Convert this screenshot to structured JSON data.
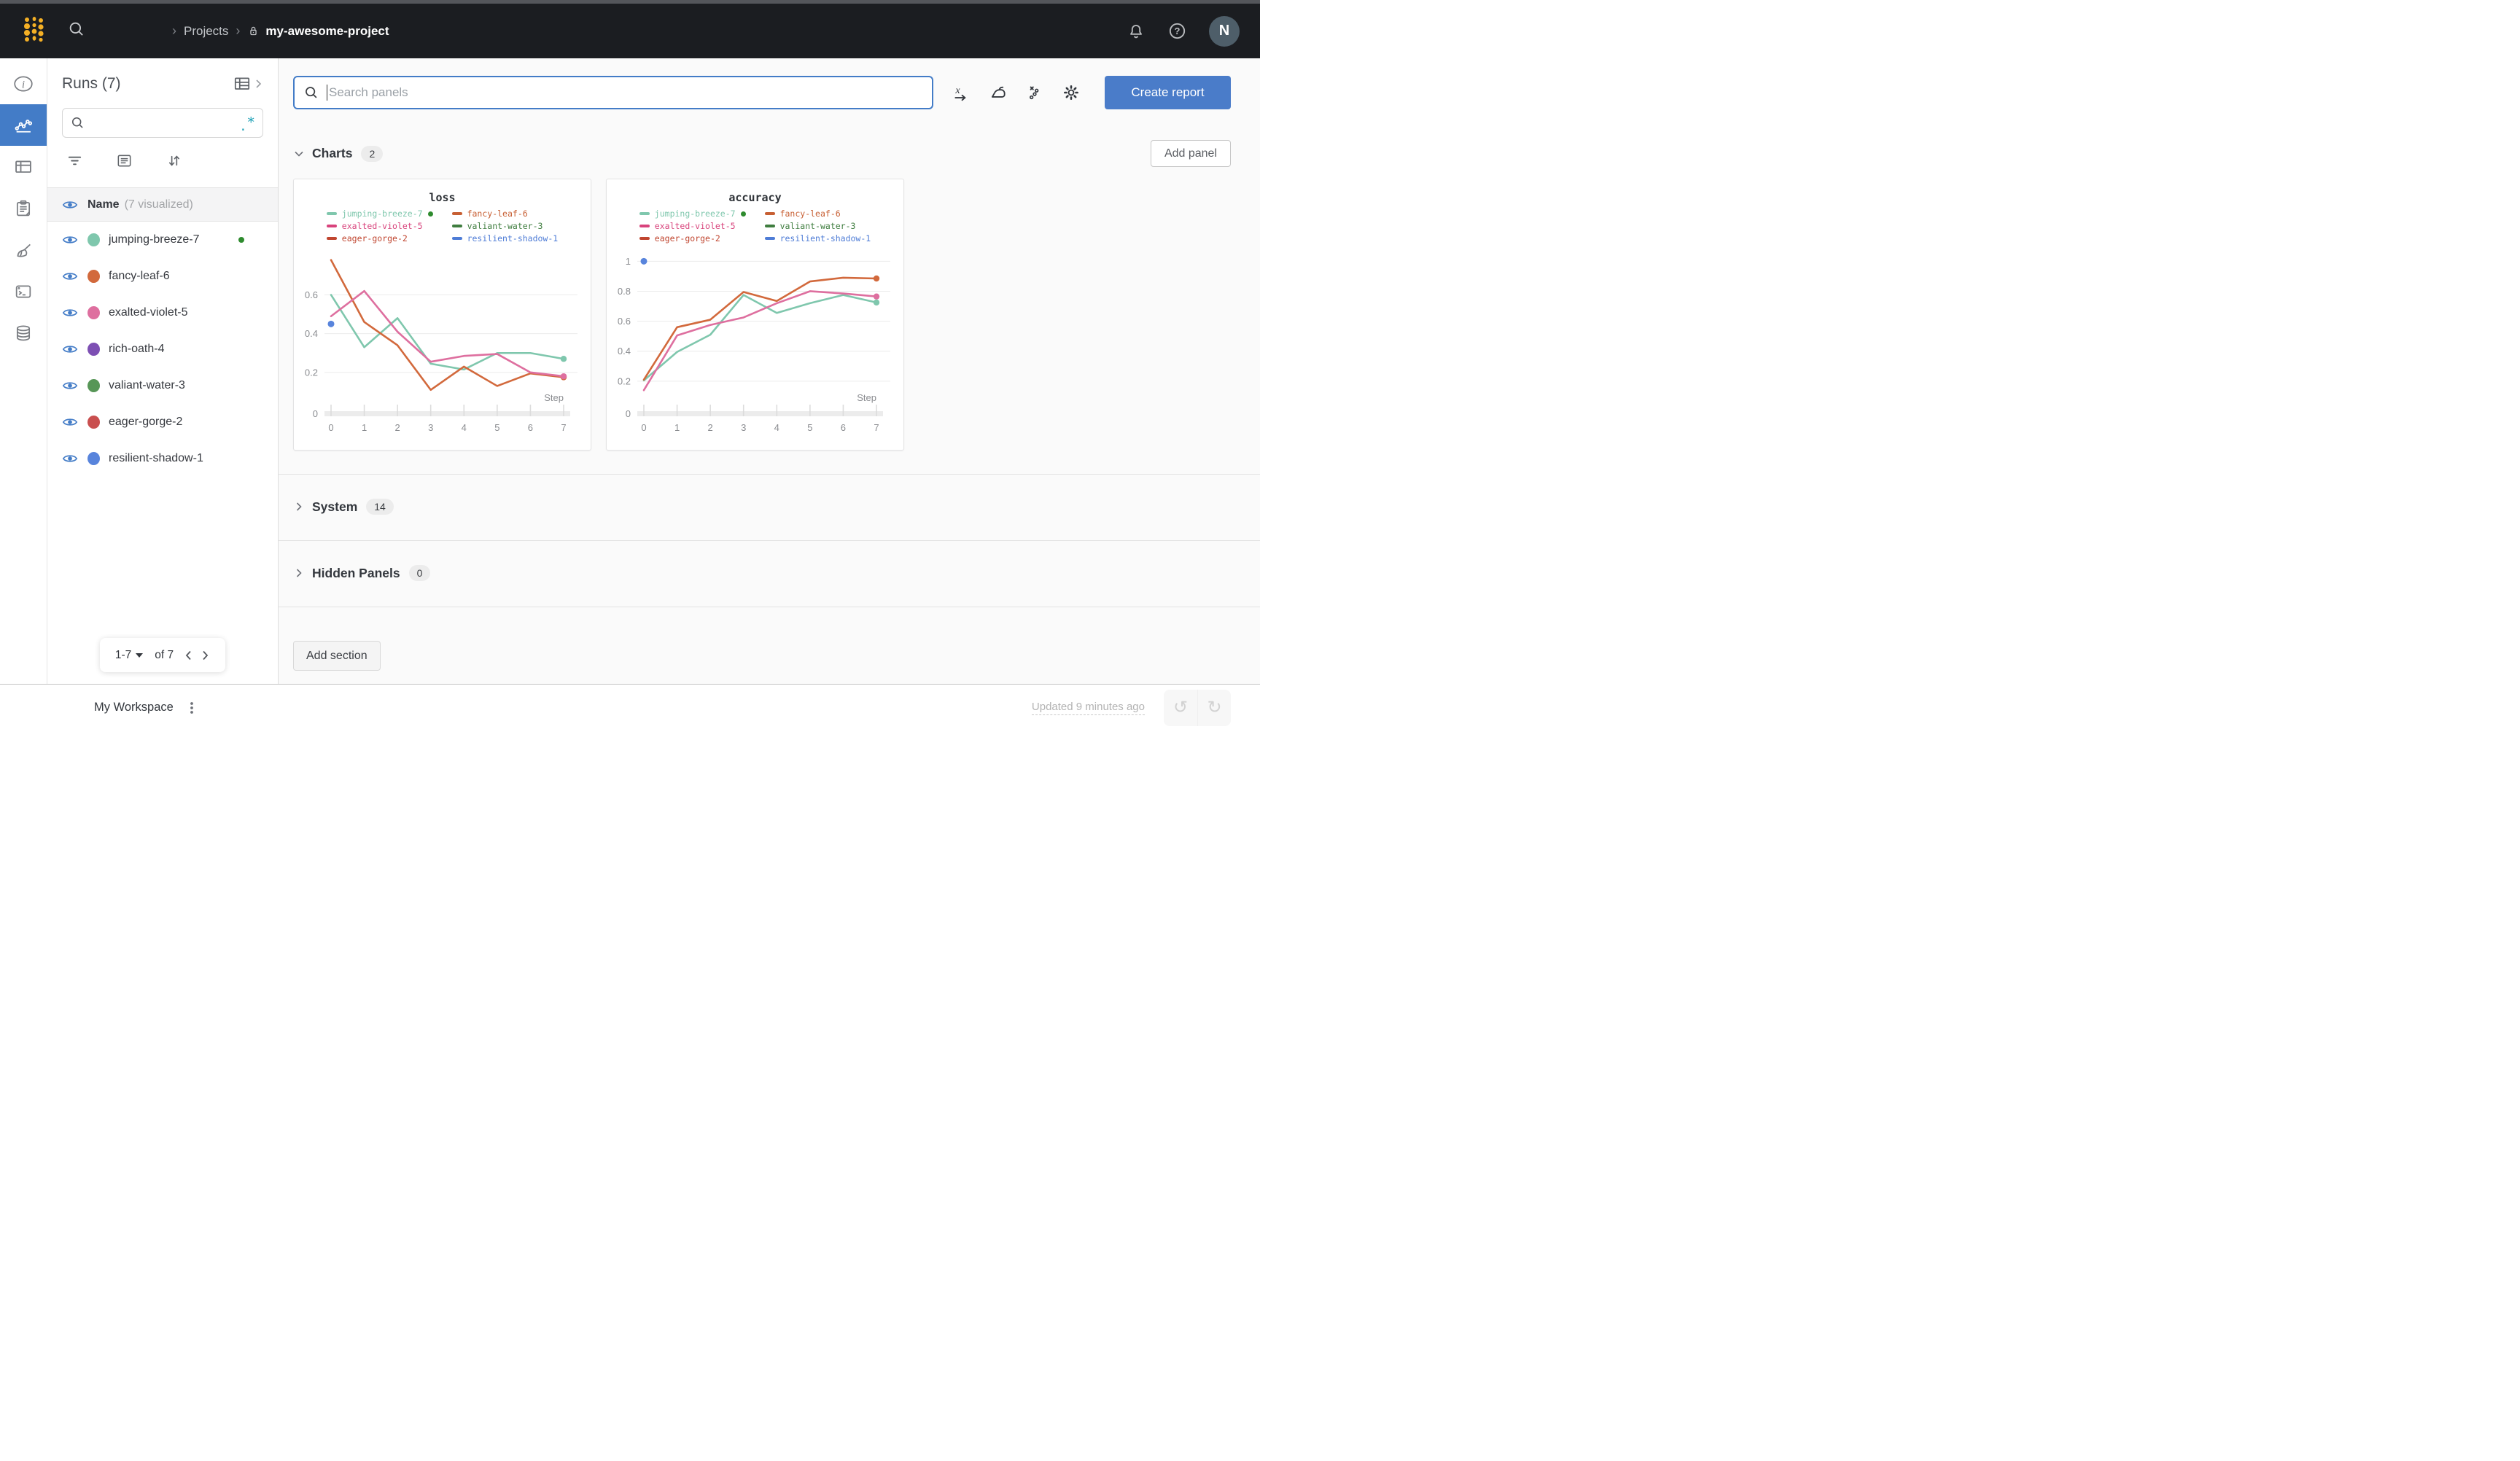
{
  "header": {
    "breadcrumb": {
      "section": "Projects",
      "project": "my-awesome-project"
    },
    "avatar_initial": "N",
    "icons": [
      "wandb-logo",
      "search-icon",
      "lock-icon",
      "bell-icon",
      "help-icon"
    ]
  },
  "nav_rail": {
    "items": [
      {
        "name": "overview",
        "icon": "info-icon",
        "active": false
      },
      {
        "name": "workspace",
        "icon": "line-chart-icon",
        "active": true
      },
      {
        "name": "table",
        "icon": "table-icon",
        "active": false
      },
      {
        "name": "jobs",
        "icon": "clipboard-icon",
        "active": false
      },
      {
        "name": "sweeps",
        "icon": "broom-icon",
        "active": false
      },
      {
        "name": "logs",
        "icon": "terminal-icon",
        "active": false
      },
      {
        "name": "artifacts",
        "icon": "database-icon",
        "active": false
      }
    ]
  },
  "runs_sidebar": {
    "title": "Runs (7)",
    "search_placeholder": "",
    "tools": [
      "filter-icon",
      "notes-icon",
      "sort-icon",
      "regex-icon",
      "table-expand-icon"
    ],
    "list_header": {
      "name": "Name",
      "visualized": "(7 visualized)"
    },
    "runs": [
      {
        "name": "jumping-breeze-7",
        "color": "#7fc7ad",
        "running": true
      },
      {
        "name": "fancy-leaf-6",
        "color": "#d2693c",
        "running": false
      },
      {
        "name": "exalted-violet-5",
        "color": "#de6f9f",
        "running": false
      },
      {
        "name": "rich-oath-4",
        "color": "#7d4fb3",
        "running": false
      },
      {
        "name": "valiant-water-3",
        "color": "#579657",
        "running": false
      },
      {
        "name": "eager-gorge-2",
        "color": "#c94f4f",
        "running": false
      },
      {
        "name": "resilient-shadow-1",
        "color": "#5884dc",
        "running": false
      }
    ],
    "pagination": {
      "range": "1-7",
      "of": "of 7"
    }
  },
  "main": {
    "search_placeholder": "Search panels",
    "toolbar_icons": [
      "x-axis-icon",
      "smoothing-iron-icon",
      "outliers-icon",
      "settings-gear-icon"
    ],
    "create_report_label": "Create report",
    "add_panel_label": "Add panel",
    "sections": [
      {
        "label": "Charts",
        "count": "2",
        "expanded": true
      },
      {
        "label": "System",
        "count": "14",
        "expanded": false
      },
      {
        "label": "Hidden Panels",
        "count": "0",
        "expanded": false
      }
    ],
    "add_section_label": "Add section"
  },
  "footer": {
    "workspace_label": "My Workspace",
    "updated_label": "Updated 9 minutes ago"
  },
  "colors": {
    "accent_blue": "#437cc7",
    "button_blue": "#4a7cc9",
    "header_bg": "#1b1d21",
    "logo_gold": "#f5b025",
    "running_green": "#2e8b2e"
  },
  "chart_data": [
    {
      "type": "line",
      "title": "loss",
      "xlabel": "Step",
      "x": [
        0,
        1,
        2,
        3,
        4,
        5,
        6,
        7
      ],
      "ylim": [
        0,
        0.82
      ],
      "yticks": [
        0,
        0.2,
        0.4,
        0.6
      ],
      "series": [
        {
          "name": "jumping-breeze-7",
          "color": "#7fc7ad",
          "values": [
            0.6,
            0.33,
            0.48,
            0.245,
            0.215,
            0.3,
            0.3,
            0.27
          ]
        },
        {
          "name": "fancy-leaf-6",
          "color": "#d2693c",
          "values": [
            0.78,
            0.46,
            0.34,
            0.11,
            0.23,
            0.13,
            0.195,
            0.175
          ]
        },
        {
          "name": "exalted-violet-5",
          "color": "#de6f9f",
          "values": [
            0.49,
            0.62,
            0.41,
            0.255,
            0.285,
            0.295,
            0.2,
            0.18
          ]
        }
      ],
      "points": [
        {
          "name": "resilient-shadow-1",
          "color": "#5884dc",
          "x": 0,
          "y": 0.45
        }
      ],
      "legend": [
        {
          "name": "jumping-breeze-7",
          "color": "#7fc7ad",
          "running": true
        },
        {
          "name": "fancy-leaf-6",
          "color": "#c75f33",
          "running": false
        },
        {
          "name": "exalted-violet-5",
          "color": "#d8437c",
          "running": false
        },
        {
          "name": "valiant-water-3",
          "color": "#3f7d3f",
          "running": false
        },
        {
          "name": "eager-gorge-2",
          "color": "#c0452f",
          "running": false
        },
        {
          "name": "resilient-shadow-1",
          "color": "#4e7cd6",
          "running": false
        }
      ]
    },
    {
      "type": "line",
      "title": "accuracy",
      "xlabel": "Step",
      "x": [
        0,
        1,
        2,
        3,
        4,
        5,
        6,
        7
      ],
      "ylim": [
        0,
        1.06
      ],
      "yticks": [
        0,
        0.2,
        0.4,
        0.6,
        0.8,
        1
      ],
      "series": [
        {
          "name": "jumping-breeze-7",
          "color": "#7fc7ad",
          "values": [
            0.205,
            0.395,
            0.51,
            0.775,
            0.655,
            0.72,
            0.775,
            0.725
          ]
        },
        {
          "name": "fancy-leaf-6",
          "color": "#d2693c",
          "values": [
            0.21,
            0.56,
            0.61,
            0.795,
            0.735,
            0.865,
            0.89,
            0.885
          ]
        },
        {
          "name": "exalted-violet-5",
          "color": "#de6f9f",
          "values": [
            0.14,
            0.505,
            0.575,
            0.625,
            0.72,
            0.8,
            0.785,
            0.765
          ]
        }
      ],
      "points": [
        {
          "name": "resilient-shadow-1",
          "color": "#5884dc",
          "x": 0,
          "y": 1.0
        }
      ],
      "legend": [
        {
          "name": "jumping-breeze-7",
          "color": "#7fc7ad",
          "running": true
        },
        {
          "name": "fancy-leaf-6",
          "color": "#c75f33",
          "running": false
        },
        {
          "name": "exalted-violet-5",
          "color": "#d8437c",
          "running": false
        },
        {
          "name": "valiant-water-3",
          "color": "#3f7d3f",
          "running": false
        },
        {
          "name": "eager-gorge-2",
          "color": "#c0452f",
          "running": false
        },
        {
          "name": "resilient-shadow-1",
          "color": "#4e7cd6",
          "running": false
        }
      ]
    }
  ]
}
